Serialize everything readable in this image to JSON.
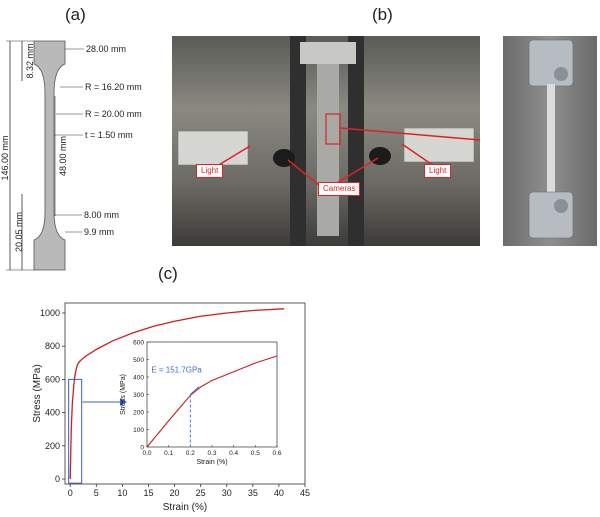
{
  "panels": {
    "a": "(a)",
    "b": "(b)",
    "c": "(c)"
  },
  "specimen": {
    "width_top": "28.00 mm",
    "grip_length": "8.32 mm",
    "radius_1": "R = 16.20 mm",
    "radius_2": "R = 20.00 mm",
    "thickness": "t = 1.50 mm",
    "total_length": "146.00 mm",
    "gauge_length": "48.00 mm",
    "lower_length": "20.05 mm",
    "gauge_width": "8.00 mm",
    "end_width": "9.9 mm"
  },
  "setup": {
    "light_left": "Light",
    "light_right": "Light",
    "cameras": "Cameras"
  },
  "colors": {
    "curve": "#cc1f1f",
    "inset_box": "#3a5fbf",
    "annotation": "#3a6fd0"
  },
  "chart_data": [
    {
      "type": "line",
      "xlabel": "Strain (%)",
      "ylabel": "Stress (MPa)",
      "xlim": [
        -1,
        45
      ],
      "ylim": [
        -30,
        1060
      ],
      "xticks": [
        0,
        5,
        10,
        15,
        20,
        25,
        30,
        35,
        40,
        45
      ],
      "yticks": [
        0,
        200,
        400,
        600,
        800,
        1000
      ],
      "grid": false,
      "series": [
        {
          "x": [
            0,
            0.2,
            0.4,
            0.6,
            0.8,
            1.0,
            1.3,
            1.6,
            2,
            3,
            5,
            8,
            12,
            16,
            20,
            25,
            30,
            35,
            41
          ],
          "y": [
            0,
            300,
            450,
            530,
            600,
            640,
            680,
            700,
            715,
            740,
            780,
            830,
            880,
            920,
            950,
            980,
            1000,
            1015,
            1025
          ]
        }
      ]
    },
    {
      "type": "line",
      "xlabel": "Strain (%)",
      "ylabel": "Stress (MPa)",
      "xlim": [
        0,
        0.6
      ],
      "ylim": [
        0,
        600
      ],
      "xticks": [
        "0.0",
        "0.1",
        "0.2",
        "0.3",
        "0.4",
        "0.5",
        "0.6"
      ],
      "yticks": [
        0,
        100,
        200,
        300,
        400,
        500,
        600
      ],
      "annotation": "E = 151.7GPa",
      "series": [
        {
          "x": [
            0,
            0.05,
            0.1,
            0.15,
            0.2,
            0.25,
            0.3,
            0.35,
            0.4,
            0.45,
            0.5,
            0.55,
            0.6
          ],
          "y": [
            0,
            75,
            150,
            222,
            295,
            345,
            380,
            405,
            430,
            455,
            480,
            500,
            520
          ]
        }
      ]
    }
  ]
}
